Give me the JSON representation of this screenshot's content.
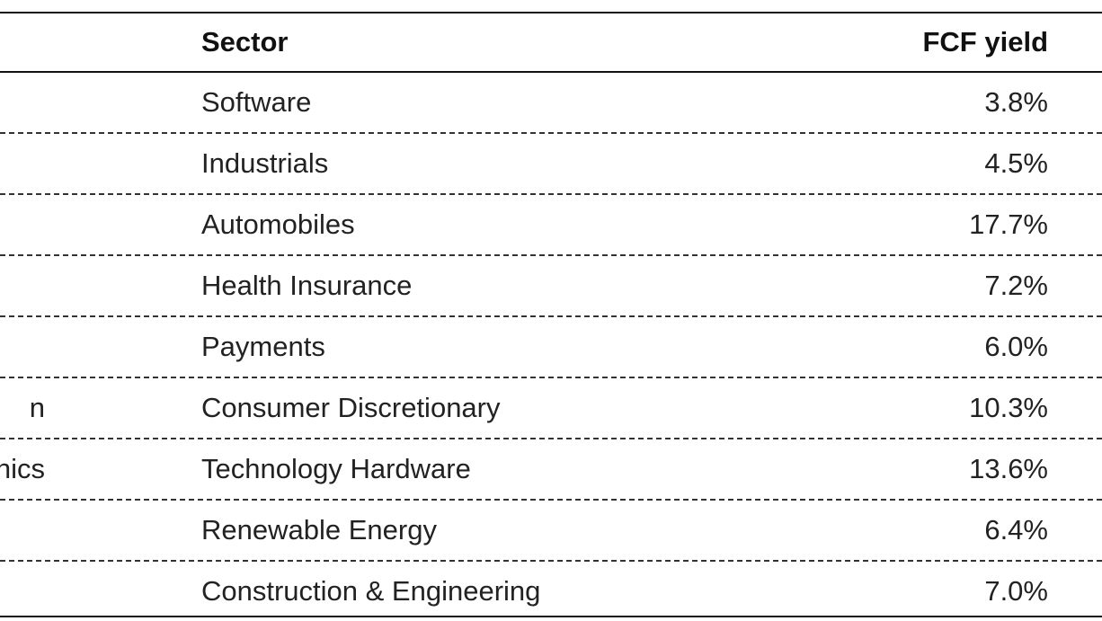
{
  "table": {
    "headers": {
      "sector": "Sector",
      "fcf_yield": "FCF yield"
    },
    "rows": [
      {
        "company_fragment": "",
        "sector": "Software",
        "fcf_yield": "3.8%"
      },
      {
        "company_fragment": "",
        "sector": "Industrials",
        "fcf_yield": "4.5%"
      },
      {
        "company_fragment": "",
        "sector": "Automobiles",
        "fcf_yield": "17.7%"
      },
      {
        "company_fragment": "",
        "sector": "Health Insurance",
        "fcf_yield": "7.2%"
      },
      {
        "company_fragment": "",
        "sector": "Payments",
        "fcf_yield": "6.0%"
      },
      {
        "company_fragment": "n",
        "sector": "Consumer Discretionary",
        "fcf_yield": "10.3%"
      },
      {
        "company_fragment": "nics",
        "sector": "Technology Hardware",
        "fcf_yield": "13.6%"
      },
      {
        "company_fragment": "",
        "sector": "Renewable Energy",
        "fcf_yield": "6.4%"
      },
      {
        "company_fragment": "",
        "sector": "Construction & Engineering",
        "fcf_yield": "7.0%"
      }
    ]
  }
}
